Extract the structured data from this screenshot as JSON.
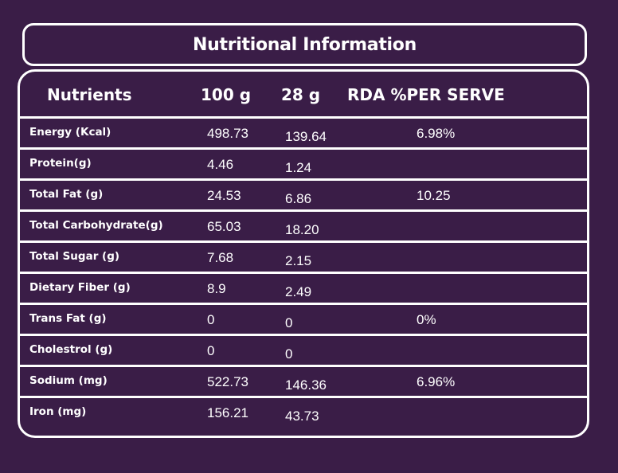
{
  "title": "Nutritional Information",
  "headers": {
    "nutrients": "Nutrients",
    "per_100g": "100 g",
    "per_28g": "28 g",
    "rda": "RDA %PER SERVE"
  },
  "rows": [
    {
      "name": "Energy (Kcal)",
      "per_100g": "498.73",
      "per_28g": "139.64",
      "rda": "6.98%"
    },
    {
      "name": "Protein(g)",
      "per_100g": "4.46",
      "per_28g": "1.24",
      "rda": ""
    },
    {
      "name": "Total Fat (g)",
      "per_100g": "24.53",
      "per_28g": "6.86",
      "rda": "10.25"
    },
    {
      "name": "Total Carbohydrate(g)",
      "per_100g": "65.03",
      "per_28g": "18.20",
      "rda": ""
    },
    {
      "name": "Total Sugar (g)",
      "per_100g": "7.68",
      "per_28g": "2.15",
      "rda": ""
    },
    {
      "name": "Dietary Fiber (g)",
      "per_100g": "8.9",
      "per_28g": "2.49",
      "rda": ""
    },
    {
      "name": "Trans Fat (g)",
      "per_100g": "0",
      "per_28g": "0",
      "rda": "0%"
    },
    {
      "name": "Cholestrol  (g)",
      "per_100g": "0",
      "per_28g": "0",
      "rda": ""
    },
    {
      "name": "Sodium (mg)",
      "per_100g": "522.73",
      "per_28g": "146.36",
      "rda": "6.96%"
    },
    {
      "name": "Iron (mg)",
      "per_100g": "156.21",
      "per_28g": "43.73",
      "rda": ""
    }
  ],
  "colors": {
    "background": "#3a1d47",
    "foreground": "#ffffff"
  }
}
